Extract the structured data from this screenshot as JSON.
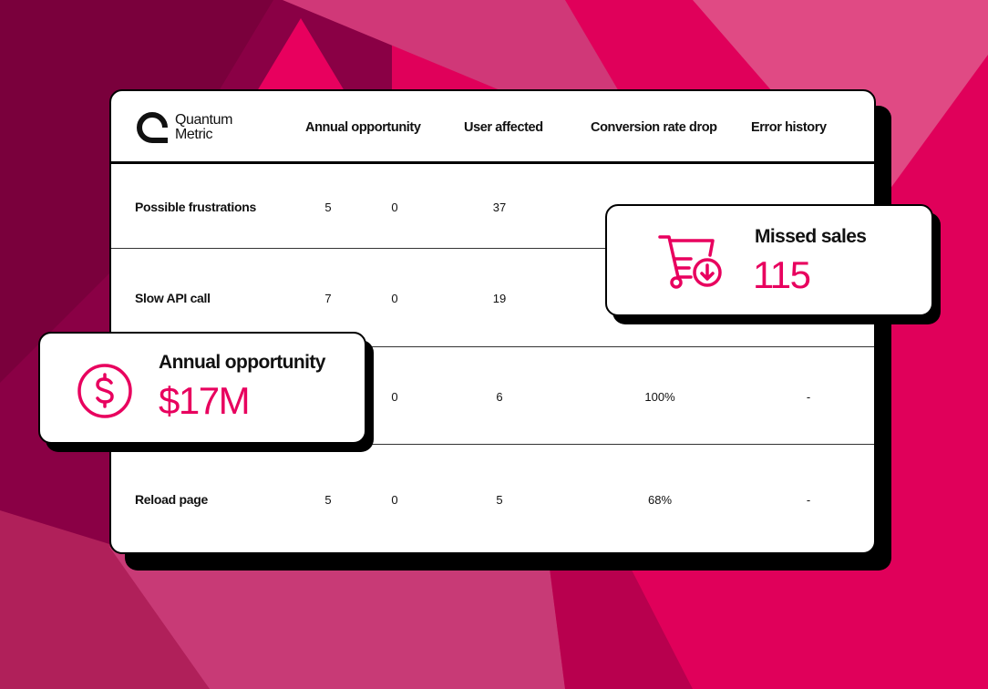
{
  "brand": {
    "name_line1": "Quantum",
    "name_line2": "Metric",
    "accent": "#e8005e"
  },
  "table": {
    "columns": [
      "Annual opportunity",
      "User affected",
      "Conversion rate drop",
      "Error history"
    ],
    "rows": [
      {
        "label": "Possible frustrations",
        "a": "5",
        "b": "0",
        "c": "37",
        "d": "",
        "e": ""
      },
      {
        "label": "Slow API call",
        "a": "7",
        "b": "0",
        "c": "19",
        "d": "",
        "e": ""
      },
      {
        "label": "",
        "a": "",
        "b": "0",
        "c": "6",
        "d": "100%",
        "e": "-"
      },
      {
        "label": "Reload page",
        "a": "5",
        "b": "0",
        "c": "5",
        "d": "68%",
        "e": "-"
      }
    ]
  },
  "missed_sales": {
    "title": "Missed sales",
    "value": "115",
    "icon": "cart-download-icon"
  },
  "annual_opportunity": {
    "title": "Annual opportunity",
    "value": "$17M",
    "icon": "dollar-circle-icon"
  }
}
